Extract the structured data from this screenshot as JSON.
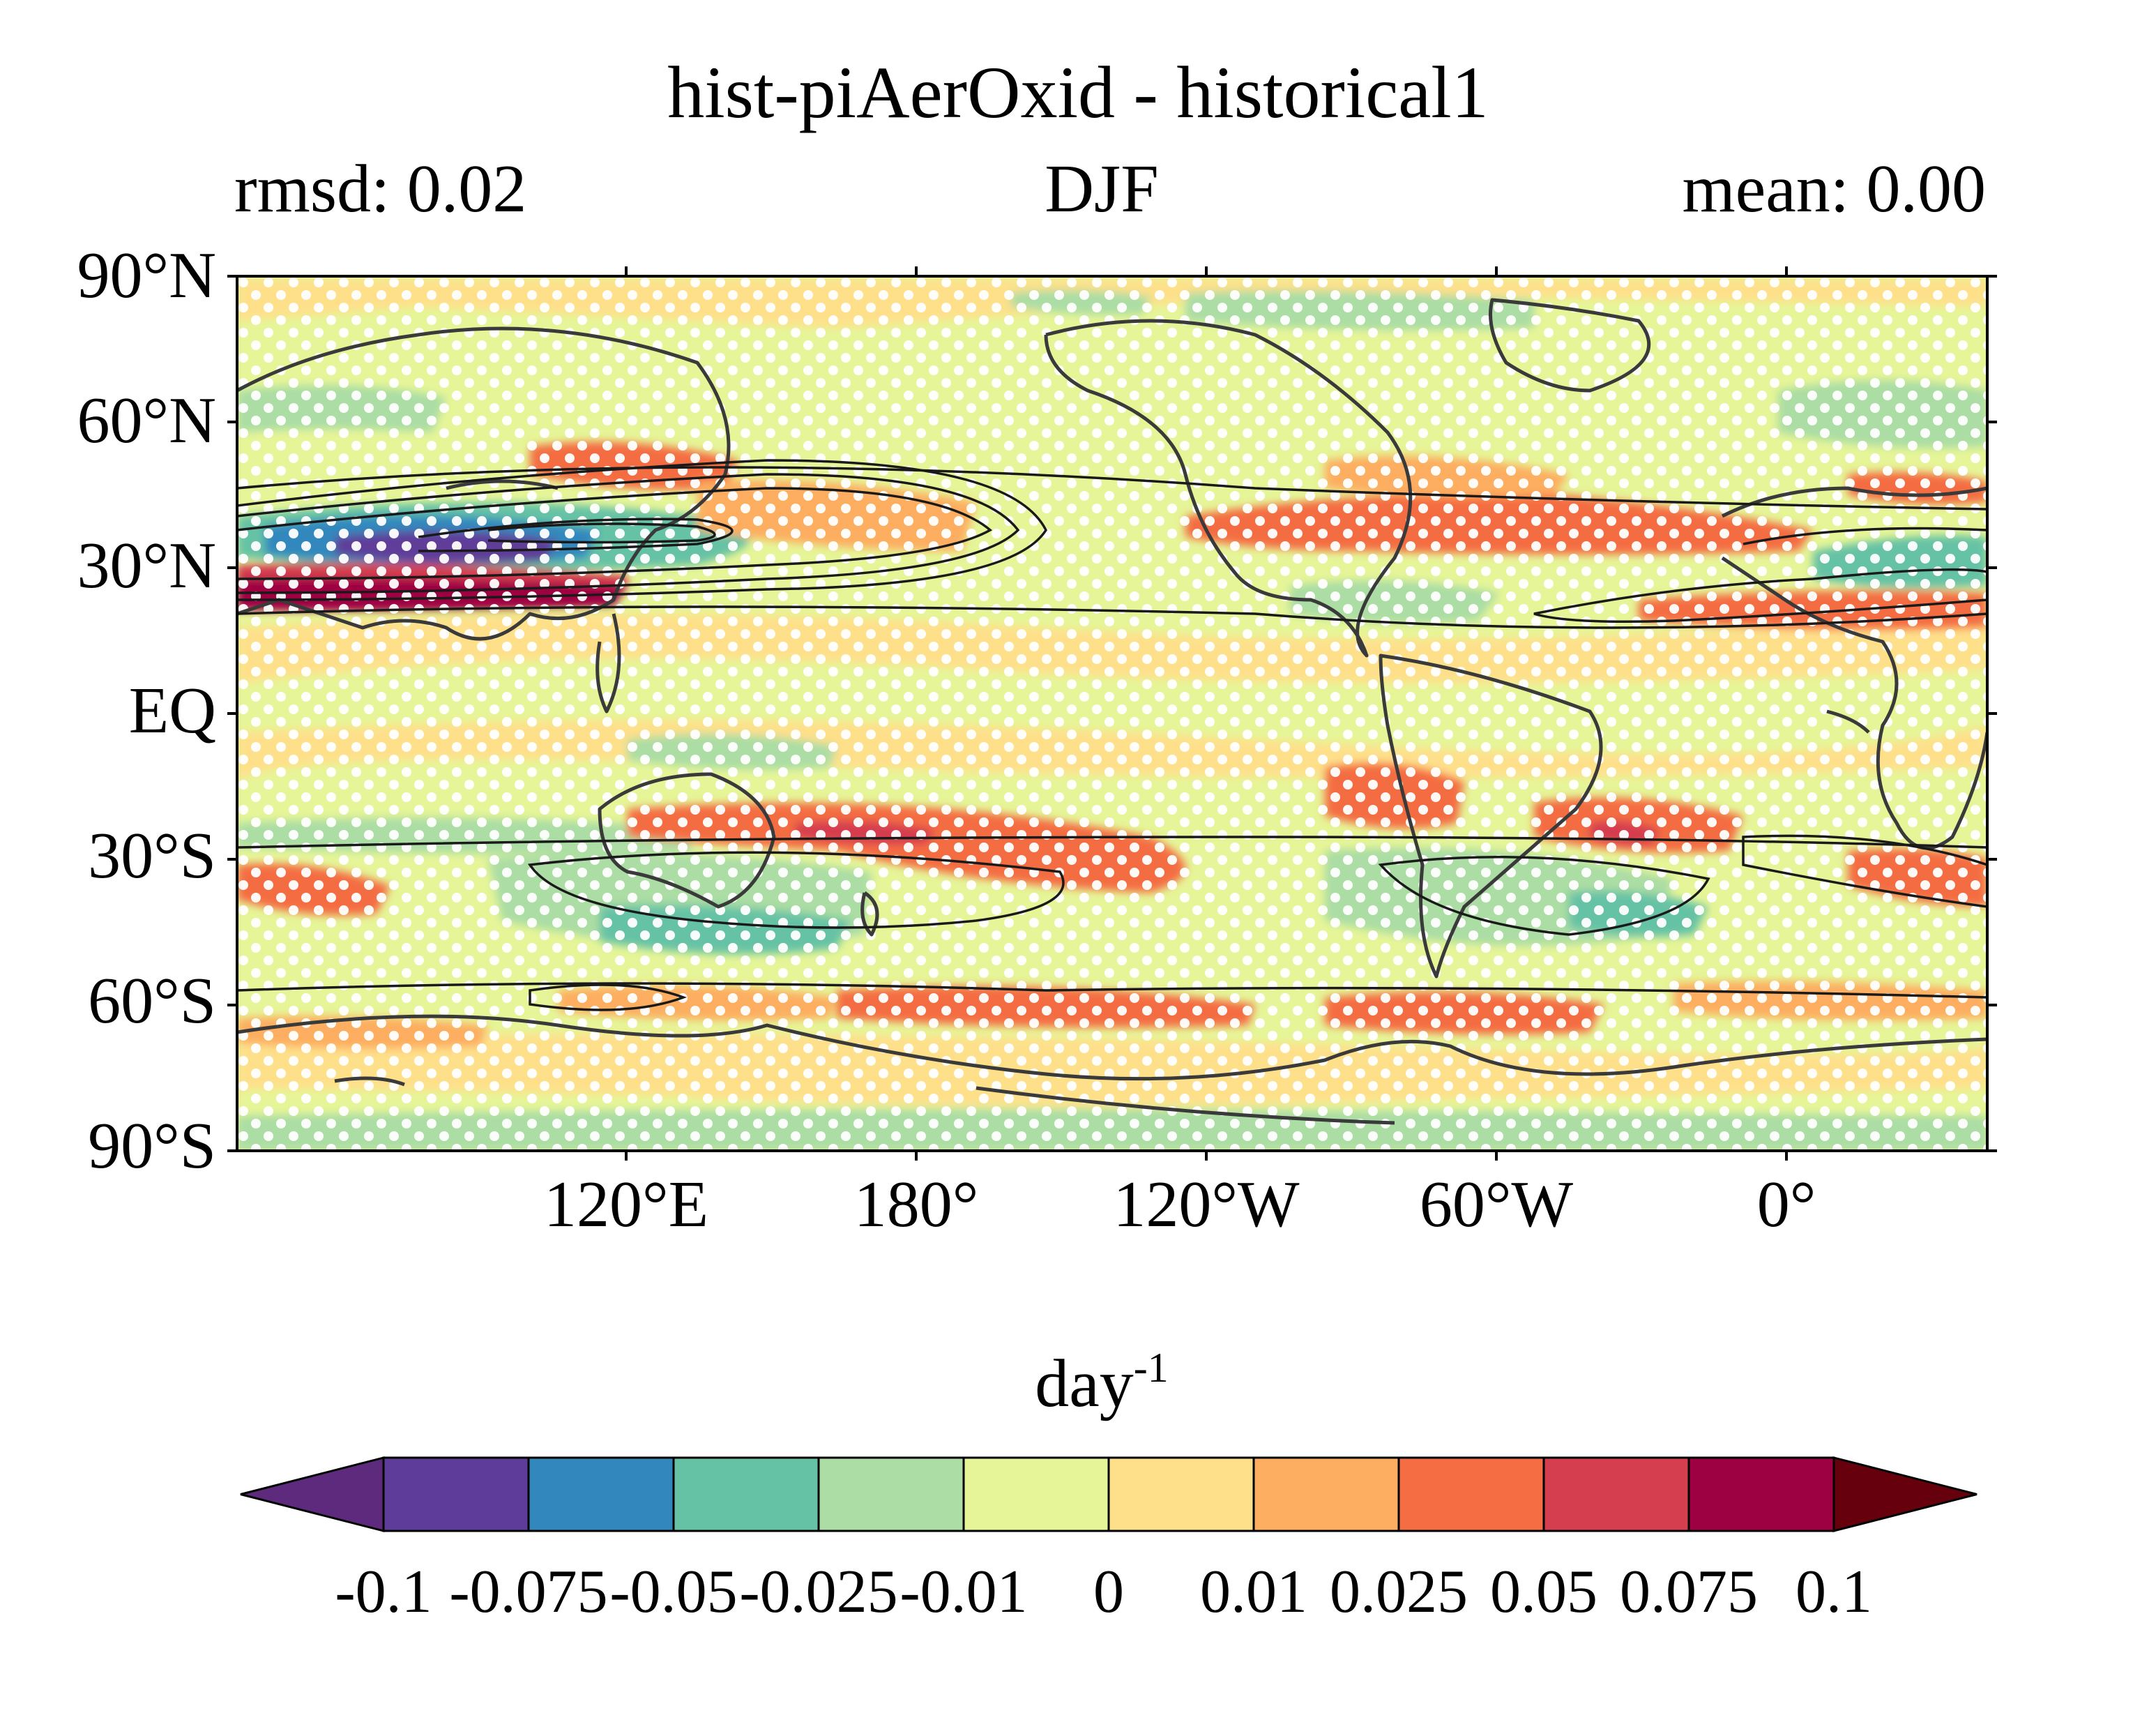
{
  "title": "hist-piAerOxid - historical1",
  "stats": {
    "rmsd_label": "rmsd: 0.02",
    "season": "DJF",
    "mean_label": "mean: 0.00"
  },
  "lat_labels": [
    "90°N",
    "60°N",
    "30°N",
    "EQ",
    "30°S",
    "60°S",
    "90°S"
  ],
  "lon_labels": [
    "120°E",
    "180°",
    "120°W",
    "60°W",
    "0°"
  ],
  "colorbar": {
    "unit": "day",
    "unit_exp": "-1",
    "levels": [
      -0.1,
      -0.075,
      -0.05,
      -0.025,
      -0.01,
      0,
      0.01,
      0.025,
      0.05,
      0.075,
      0.1
    ],
    "tick_labels": [
      "-0.1",
      "-0.075",
      "-0.05",
      "-0.025",
      "-0.01",
      "0",
      "0.01",
      "0.025",
      "0.05",
      "0.075",
      "0.1"
    ],
    "colors": [
      "#5e3c99",
      "#3288bd",
      "#66c2a5",
      "#abdda4",
      "#e6f598",
      "#fee08b",
      "#fdae61",
      "#f46d43",
      "#d53e4f",
      "#9e0142"
    ],
    "extend_low_color": "#5e2a7e",
    "extend_high_color": "#67000d"
  },
  "map": {
    "projection": "equirectangular",
    "central_longitude": 150,
    "lat_range": [
      -90,
      90
    ],
    "stippling": "white dots over non-significant areas",
    "contours": "black climatology contours",
    "coastlines": "dark gray"
  }
}
